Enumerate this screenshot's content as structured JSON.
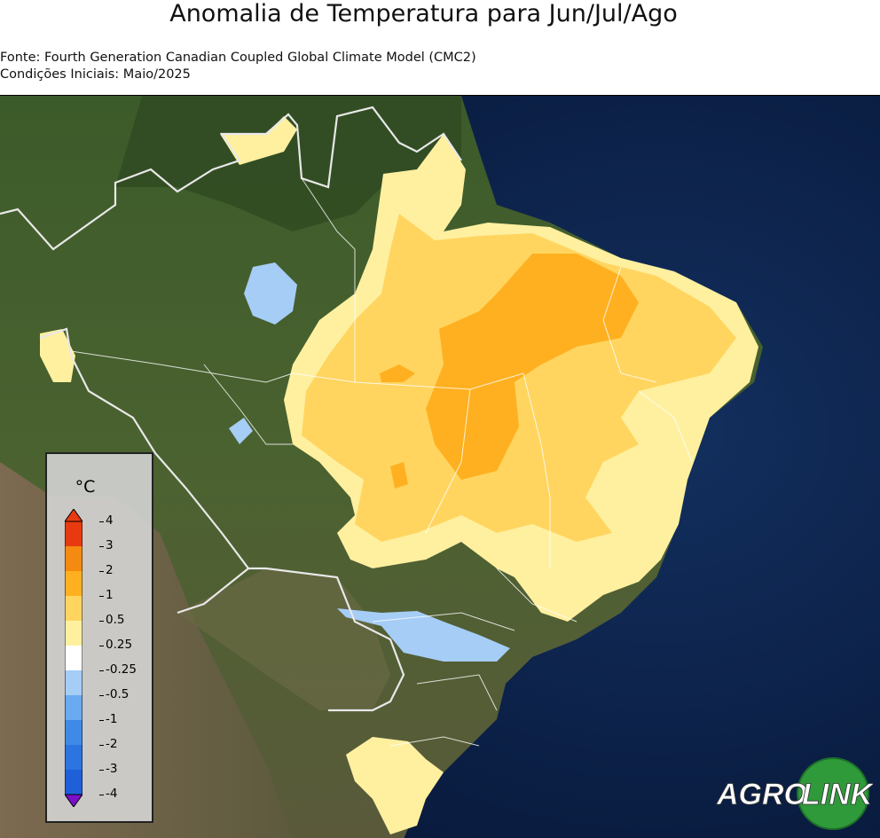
{
  "title": "Anomalia de Temperatura para Jun/Jul/Ago",
  "source": "Fonte: Fourth Generation Canadian Coupled Global Climate Model (CMC2)",
  "initial_conditions": "Condições Iniciais: Maio/2025",
  "legend": {
    "unit": "°C",
    "ticks": [
      "4",
      "3",
      "2",
      "1",
      "0.5",
      "0.25",
      "-0.25",
      "-0.5",
      "-1",
      "-2",
      "-3",
      "-4"
    ],
    "bands": [
      {
        "range": "-4 to -3",
        "color": "#1f5fd8"
      },
      {
        "range": "-3 to -2",
        "color": "#2c74e0"
      },
      {
        "range": "-2 to -1",
        "color": "#3f8ae6"
      },
      {
        "range": "-1 to -0.5",
        "color": "#6aaaf0"
      },
      {
        "range": "-0.5 to -0.25",
        "color": "#a5cdf6"
      },
      {
        "range": "-0.25 to 0.25",
        "color": "#ffffff"
      },
      {
        "range": "0.25 to 0.5",
        "color": "#fff0a0"
      },
      {
        "range": "0.5 to 1",
        "color": "#ffd560"
      },
      {
        "range": "1 to 2",
        "color": "#ffb020"
      },
      {
        "range": "2 to 3",
        "color": "#f58a10"
      },
      {
        "range": "3 to 4",
        "color": "#e83a10"
      }
    ]
  },
  "logo": {
    "text_left": "AGRO",
    "text_right": "LINK",
    "circle_color": "#2e9a3a"
  }
}
